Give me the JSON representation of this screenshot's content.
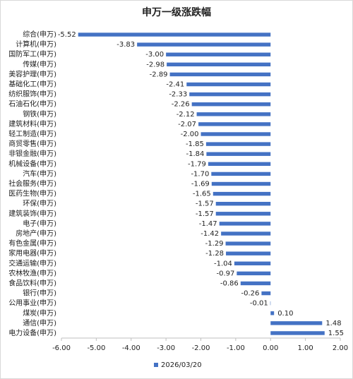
{
  "chart_data": {
    "type": "hbar",
    "title": "申万一级涨跌幅",
    "categories": [
      "综合(申万)",
      "计算机(申万)",
      "国防军工(申万)",
      "传媒(申万)",
      "美容护理(申万)",
      "基础化工(申万)",
      "纺织服饰(申万)",
      "石油石化(申万)",
      "钢铁(申万)",
      "建筑材料(申万)",
      "轻工制造(申万)",
      "商贸零售(申万)",
      "非银金融(申万)",
      "机械设备(申万)",
      "汽车(申万)",
      "社会服务(申万)",
      "医药生物(申万)",
      "环保(申万)",
      "建筑装饰(申万)",
      "电子(申万)",
      "房地产(申万)",
      "有色金属(申万)",
      "家用电器(申万)",
      "交通运输(申万)",
      "农林牧渔(申万)",
      "食品饮料(申万)",
      "银行(申万)",
      "公用事业(申万)",
      "煤炭(申万)",
      "通信(申万)",
      "电力设备(申万)"
    ],
    "series": [
      {
        "name": "2026/03/20",
        "color": "#4472c4",
        "values": [
          -5.52,
          -3.83,
          -3.0,
          -2.98,
          -2.89,
          -2.41,
          -2.33,
          -2.26,
          -2.12,
          -2.07,
          -2.0,
          -1.85,
          -1.84,
          -1.79,
          -1.7,
          -1.69,
          -1.65,
          -1.57,
          -1.57,
          -1.47,
          -1.42,
          -1.29,
          -1.28,
          -1.04,
          -0.97,
          -0.86,
          -0.26,
          -0.01,
          0.1,
          1.48,
          1.55
        ],
        "value_labels": [
          "-5.52",
          "-3.83",
          "-3.00",
          "-2.98",
          "-2.89",
          "-2.41",
          "-2.33",
          "-2.26",
          "-2.12",
          "-2.07",
          "-2.00",
          "-1.85",
          "-1.84",
          "-1.79",
          "-1.70",
          "-1.69",
          "-1.65",
          "-1.57",
          "-1.57",
          "-1.47",
          "-1.42",
          "-1.29",
          "-1.28",
          "-1.04",
          "-0.97",
          "-0.86",
          "-0.26",
          "-0.01",
          "0.10",
          "1.48",
          "1.55"
        ]
      }
    ],
    "xlim": [
      -6,
      2
    ],
    "xticks": [
      {
        "value": -6,
        "label": "-6.00"
      },
      {
        "value": -5,
        "label": "-5.00"
      },
      {
        "value": -4,
        "label": "-4.00"
      },
      {
        "value": -3,
        "label": "-3.00"
      },
      {
        "value": -2,
        "label": "-2.00"
      },
      {
        "value": -1,
        "label": "-1.00"
      },
      {
        "value": 0,
        "label": "0.00"
      },
      {
        "value": 1,
        "label": "1.00"
      },
      {
        "value": 2,
        "label": "2.00"
      }
    ],
    "legend": "bottom"
  }
}
